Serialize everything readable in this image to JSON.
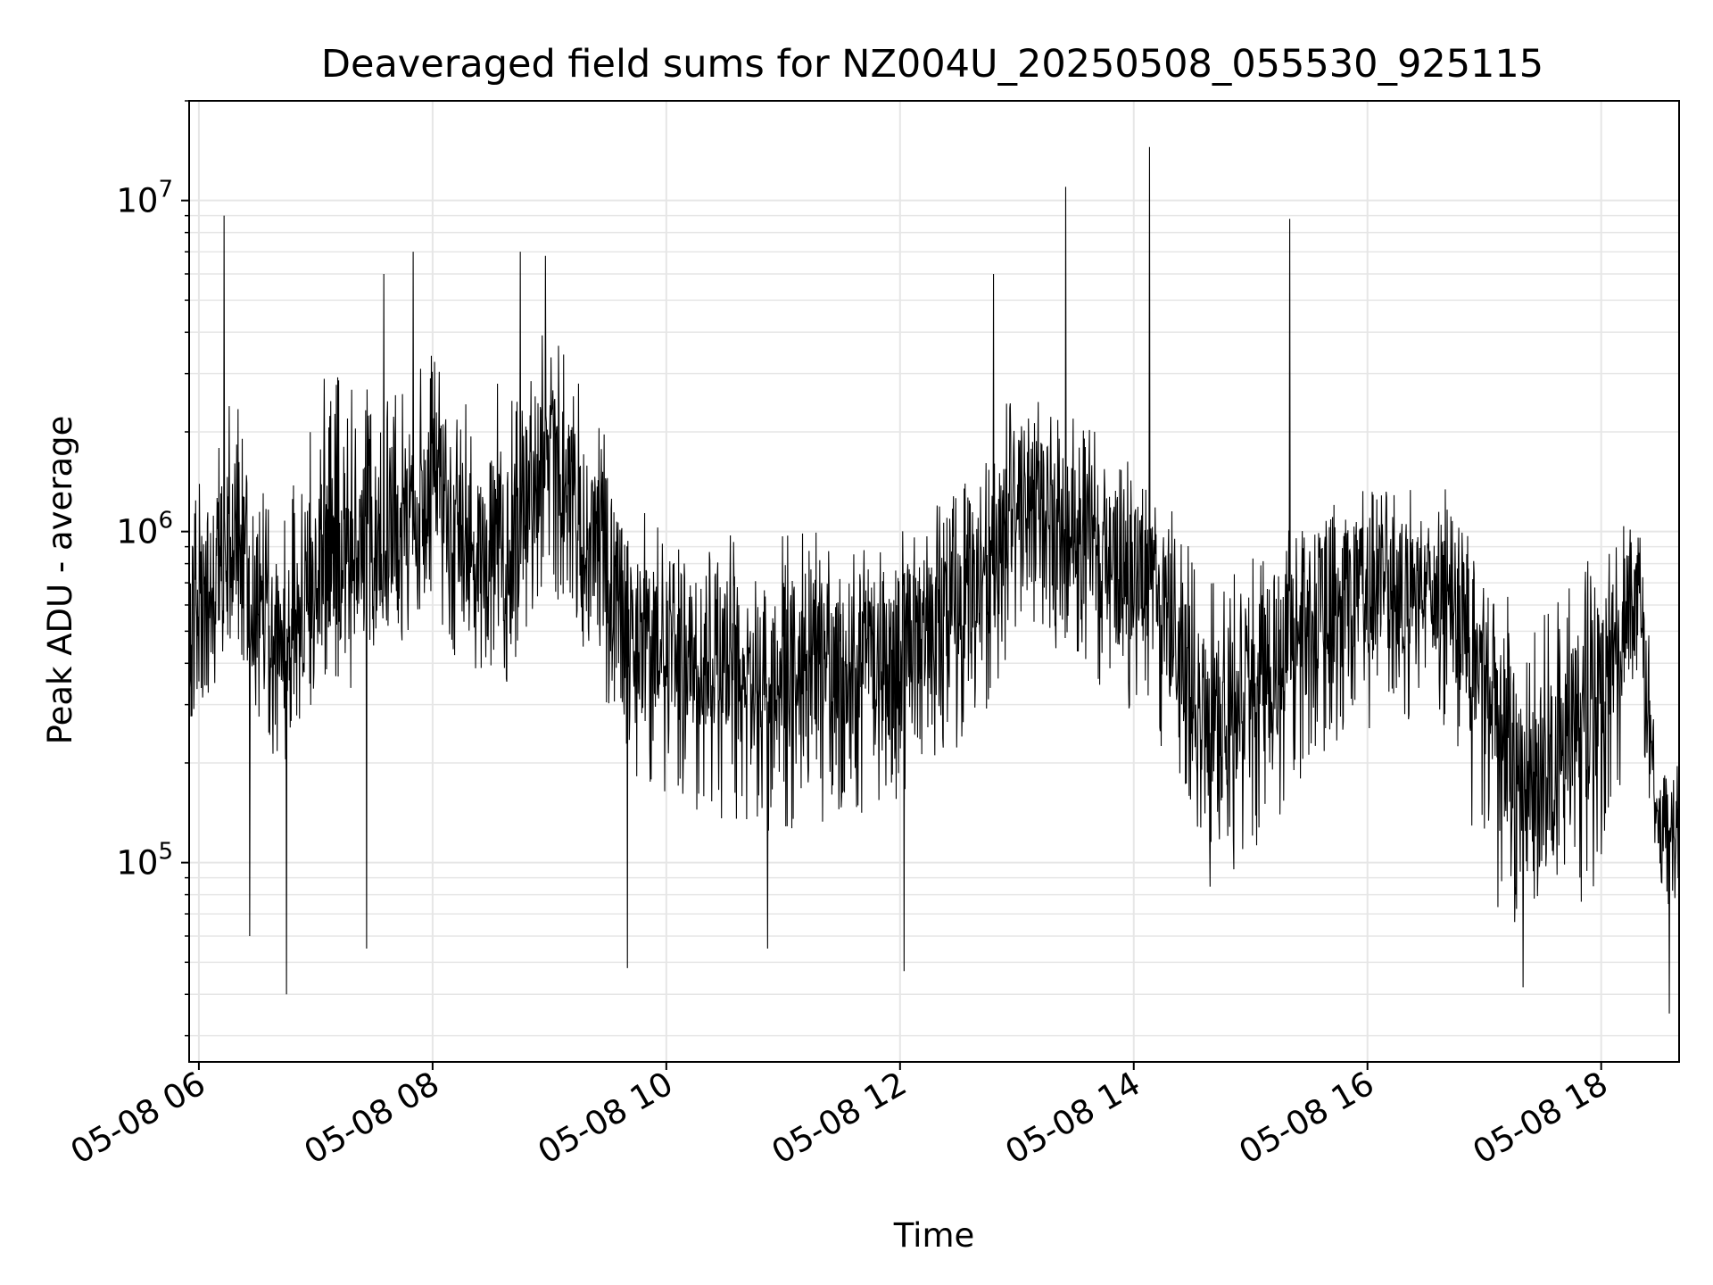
{
  "chart_data": {
    "type": "line",
    "title": "Deaveraged field sums for NZ004U_20250508_055530_925115",
    "xlabel": "Time",
    "ylabel": "Peak ADU - average",
    "x_scale": "time",
    "y_scale": "log",
    "xlim": [
      "2025-05-08 05:55",
      "2025-05-08 18:40"
    ],
    "ylim": [
      25000,
      20000000
    ],
    "x_ticks": [
      {
        "value": "2025-05-08 06:00",
        "label": "05-08 06"
      },
      {
        "value": "2025-05-08 08:00",
        "label": "05-08 08"
      },
      {
        "value": "2025-05-08 10:00",
        "label": "05-08 10"
      },
      {
        "value": "2025-05-08 12:00",
        "label": "05-08 12"
      },
      {
        "value": "2025-05-08 14:00",
        "label": "05-08 14"
      },
      {
        "value": "2025-05-08 16:00",
        "label": "05-08 16"
      },
      {
        "value": "2025-05-08 18:00",
        "label": "05-08 18"
      }
    ],
    "y_ticks": [
      {
        "value": 100000,
        "base": "10",
        "exp": "5"
      },
      {
        "value": 1000000,
        "base": "10",
        "exp": "6"
      },
      {
        "value": 10000000,
        "base": "10",
        "exp": "7"
      }
    ],
    "grid": true,
    "line_color": "#000000",
    "grid_color": "#e6e6e6",
    "series": [
      {
        "time_start": "2025-05-08 05:55",
        "time_end": "2025-05-08 18:40",
        "envelope": [
          {
            "time": "2025-05-08 05:55",
            "typical": 600000,
            "low": 250000,
            "high": 1200000
          },
          {
            "time": "2025-05-08 06:20",
            "typical": 1000000,
            "low": 450000,
            "high": 3000000
          },
          {
            "time": "2025-05-08 06:40",
            "typical": 450000,
            "low": 180000,
            "high": 900000
          },
          {
            "time": "2025-05-08 07:00",
            "typical": 800000,
            "low": 300000,
            "high": 3000000
          },
          {
            "time": "2025-05-08 07:30",
            "typical": 900000,
            "low": 350000,
            "high": 3000000
          },
          {
            "time": "2025-05-08 08:00",
            "typical": 1500000,
            "low": 600000,
            "high": 3500000
          },
          {
            "time": "2025-05-08 08:20",
            "typical": 900000,
            "low": 300000,
            "high": 2500000
          },
          {
            "time": "2025-05-08 08:40",
            "typical": 1000000,
            "low": 350000,
            "high": 3000000
          },
          {
            "time": "2025-05-08 09:00",
            "typical": 1800000,
            "low": 700000,
            "high": 4500000
          },
          {
            "time": "2025-05-08 09:20",
            "typical": 1000000,
            "low": 400000,
            "high": 2500000
          },
          {
            "time": "2025-05-08 09:45",
            "typical": 500000,
            "low": 180000,
            "high": 1200000
          },
          {
            "time": "2025-05-08 10:00",
            "typical": 450000,
            "low": 150000,
            "high": 1000000
          },
          {
            "time": "2025-05-08 11:00",
            "typical": 400000,
            "low": 120000,
            "high": 1000000
          },
          {
            "time": "2025-05-08 12:00",
            "typical": 450000,
            "low": 150000,
            "high": 1000000
          },
          {
            "time": "2025-05-08 12:40",
            "typical": 700000,
            "low": 250000,
            "high": 1500000
          },
          {
            "time": "2025-05-08 13:00",
            "typical": 1300000,
            "low": 500000,
            "high": 3000000
          },
          {
            "time": "2025-05-08 13:40",
            "typical": 900000,
            "low": 350000,
            "high": 2000000
          },
          {
            "time": "2025-05-08 14:10",
            "typical": 700000,
            "low": 250000,
            "high": 1500000
          },
          {
            "time": "2025-05-08 14:40",
            "typical": 250000,
            "low": 80000,
            "high": 700000
          },
          {
            "time": "2025-05-08 15:10",
            "typical": 400000,
            "low": 120000,
            "high": 900000
          },
          {
            "time": "2025-05-08 15:30",
            "typical": 600000,
            "low": 200000,
            "high": 1200000
          },
          {
            "time": "2025-05-08 16:00",
            "typical": 700000,
            "low": 250000,
            "high": 1400000
          },
          {
            "time": "2025-05-08 16:40",
            "typical": 650000,
            "low": 250000,
            "high": 1500000
          },
          {
            "time": "2025-05-08 17:00",
            "typical": 350000,
            "low": 80000,
            "high": 900000
          },
          {
            "time": "2025-05-08 17:30",
            "typical": 180000,
            "low": 55000,
            "high": 600000
          },
          {
            "time": "2025-05-08 18:00",
            "typical": 350000,
            "low": 90000,
            "high": 900000
          },
          {
            "time": "2025-05-08 18:20",
            "typical": 700000,
            "low": 300000,
            "high": 1200000
          },
          {
            "time": "2025-05-08 18:30",
            "typical": 120000,
            "low": 60000,
            "high": 200000
          },
          {
            "time": "2025-05-08 18:40",
            "typical": 130000,
            "low": 80000,
            "high": 200000
          }
        ],
        "spikes": [
          {
            "time": "2025-05-08 06:13",
            "value": 9000000
          },
          {
            "time": "2025-05-08 06:26",
            "value": 60000
          },
          {
            "time": "2025-05-08 06:45",
            "value": 40000
          },
          {
            "time": "2025-05-08 07:26",
            "value": 55000
          },
          {
            "time": "2025-05-08 07:35",
            "value": 6000000
          },
          {
            "time": "2025-05-08 07:50",
            "value": 7000000
          },
          {
            "time": "2025-05-08 08:45",
            "value": 7000000
          },
          {
            "time": "2025-05-08 08:58",
            "value": 6800000
          },
          {
            "time": "2025-05-08 09:40",
            "value": 48000
          },
          {
            "time": "2025-05-08 10:52",
            "value": 55000
          },
          {
            "time": "2025-05-08 12:02",
            "value": 47000
          },
          {
            "time": "2025-05-08 12:48",
            "value": 6000000
          },
          {
            "time": "2025-05-08 13:25",
            "value": 11000000
          },
          {
            "time": "2025-05-08 14:08",
            "value": 14500000
          },
          {
            "time": "2025-05-08 15:20",
            "value": 8800000
          },
          {
            "time": "2025-05-08 17:20",
            "value": 42000
          },
          {
            "time": "2025-05-08 18:35",
            "value": 35000
          }
        ]
      }
    ]
  }
}
